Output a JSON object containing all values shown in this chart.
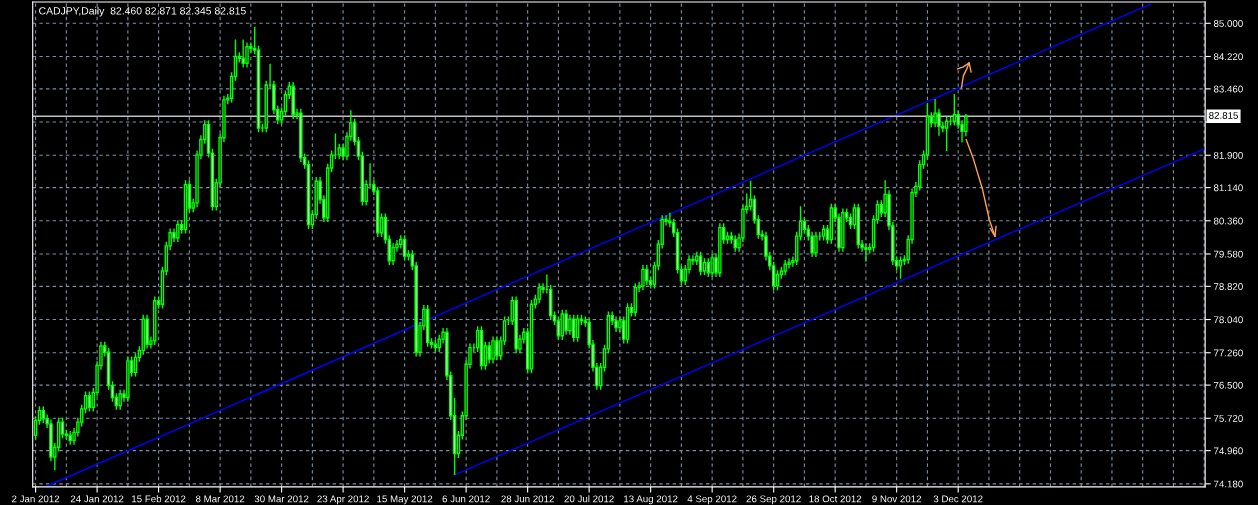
{
  "chart_data": {
    "type": "candlestick",
    "title": "CADJPY,Daily  82.460 82.871 82.345 82.815",
    "color": "#00ff00",
    "categories": [
      "2 Jan 2012",
      null,
      null,
      null,
      null,
      null,
      null,
      null,
      null,
      null,
      null,
      null,
      null,
      null,
      null,
      null,
      "24 Jan 2012",
      null,
      null,
      null,
      null,
      null,
      null,
      null,
      null,
      null,
      null,
      null,
      null,
      null,
      null,
      null,
      "15 Feb 2012",
      null,
      null,
      null,
      null,
      null,
      null,
      null,
      null,
      null,
      null,
      null,
      null,
      null,
      null,
      null,
      "8 Mar 2012",
      null,
      null,
      null,
      null,
      null,
      null,
      null,
      null,
      null,
      null,
      null,
      null,
      null,
      null,
      null,
      "30 Mar 2012",
      null,
      null,
      null,
      null,
      null,
      null,
      null,
      null,
      null,
      null,
      null,
      null,
      null,
      null,
      null,
      "23 Apr 2012",
      null,
      null,
      null,
      null,
      null,
      null,
      null,
      null,
      null,
      null,
      null,
      null,
      null,
      null,
      null,
      "15 May 2012",
      null,
      null,
      null,
      null,
      null,
      null,
      null,
      null,
      null,
      null,
      null,
      null,
      null,
      null,
      null,
      "6 Jun 2012",
      null,
      null,
      null,
      null,
      null,
      null,
      null,
      null,
      null,
      null,
      null,
      null,
      null,
      null,
      null,
      "28 Jun 2012",
      null,
      null,
      null,
      null,
      null,
      null,
      null,
      null,
      null,
      null,
      null,
      null,
      null,
      null,
      null,
      "20 Jul 2012",
      null,
      null,
      null,
      null,
      null,
      null,
      null,
      null,
      null,
      null,
      null,
      null,
      null,
      null,
      null,
      "13 Aug 2012",
      null,
      null,
      null,
      null,
      null,
      null,
      null,
      null,
      null,
      null,
      null,
      null,
      null,
      null,
      null,
      "4 Sep 2012",
      null,
      null,
      null,
      null,
      null,
      null,
      null,
      null,
      null,
      null,
      null,
      null,
      null,
      null,
      null,
      "26 Sep 2012",
      null,
      null,
      null,
      null,
      null,
      null,
      null,
      null,
      null,
      null,
      null,
      null,
      null,
      null,
      null,
      "18 Oct 2012",
      null,
      null,
      null,
      null,
      null,
      null,
      null,
      null,
      null,
      null,
      null,
      null,
      null,
      null,
      null,
      "9 Nov 2012",
      null,
      null,
      null,
      null,
      null,
      null,
      null,
      null,
      null,
      null,
      null,
      null,
      null,
      null,
      null,
      "3 Dec 2012",
      null,
      null,
      null,
      null,
      null,
      null,
      null,
      null,
      null,
      null,
      null,
      null,
      null,
      null,
      null,
      null,
      null,
      null,
      null,
      null,
      null,
      null,
      null,
      null,
      null,
      null,
      null,
      null,
      null,
      null,
      null,
      null,
      null,
      null,
      null,
      null,
      null,
      null,
      null,
      null,
      null,
      null,
      null,
      null,
      null,
      null,
      null,
      null,
      null,
      null,
      null,
      null,
      null,
      null,
      null,
      null,
      null,
      null,
      null,
      null,
      null,
      null,
      null,
      null
    ],
    "ohlc": [
      [
        75.32,
        75.77,
        75.22,
        75.67
      ],
      [
        75.67,
        76.0,
        75.57,
        75.9
      ],
      [
        75.9,
        76.0,
        75.61,
        75.71
      ],
      [
        75.71,
        75.81,
        75.49,
        75.59
      ],
      [
        75.59,
        75.69,
        74.71,
        74.81
      ],
      [
        74.81,
        75.14,
        74.5,
        75.04
      ],
      [
        75.04,
        75.73,
        74.94,
        75.63
      ],
      [
        75.63,
        75.73,
        75.25,
        75.35
      ],
      [
        75.35,
        75.45,
        75.22,
        75.32
      ],
      [
        75.32,
        75.42,
        75.1,
        75.2
      ],
      [
        75.2,
        75.49,
        75.1,
        75.39
      ],
      [
        75.39,
        75.73,
        75.29,
        75.63
      ],
      [
        75.63,
        76.04,
        75.53,
        75.94
      ],
      [
        75.94,
        76.35,
        75.84,
        76.25
      ],
      [
        76.25,
        76.35,
        75.88,
        75.98
      ],
      [
        75.98,
        76.43,
        75.88,
        76.33
      ],
      [
        76.33,
        77.06,
        76.23,
        76.96
      ],
      [
        76.96,
        77.52,
        76.86,
        77.42
      ],
      [
        77.42,
        77.52,
        77.17,
        77.27
      ],
      [
        77.27,
        77.37,
        76.39,
        76.49
      ],
      [
        76.49,
        76.59,
        76.11,
        76.21
      ],
      [
        76.21,
        76.31,
        75.92,
        76.02
      ],
      [
        76.02,
        76.39,
        75.92,
        76.29
      ],
      [
        76.29,
        76.39,
        76.11,
        76.21
      ],
      [
        76.21,
        77.17,
        76.11,
        77.07
      ],
      [
        77.07,
        77.17,
        76.7,
        76.8
      ],
      [
        76.8,
        77.25,
        76.7,
        77.15
      ],
      [
        77.15,
        77.41,
        77.05,
        77.31
      ],
      [
        77.31,
        78.15,
        77.21,
        78.05
      ],
      [
        78.05,
        78.15,
        77.36,
        77.46
      ],
      [
        77.46,
        77.64,
        77.36,
        77.54
      ],
      [
        77.54,
        78.58,
        77.44,
        78.48
      ],
      [
        78.48,
        78.58,
        78.3,
        78.4
      ],
      [
        78.4,
        79.28,
        78.3,
        79.18
      ],
      [
        79.18,
        79.87,
        79.08,
        79.77
      ],
      [
        79.77,
        80.18,
        79.67,
        80.08
      ],
      [
        80.08,
        80.18,
        79.86,
        79.96
      ],
      [
        79.96,
        80.37,
        79.86,
        80.27
      ],
      [
        80.27,
        80.37,
        80.06,
        80.16
      ],
      [
        80.16,
        81.31,
        80.06,
        81.21
      ],
      [
        81.21,
        81.31,
        80.56,
        80.66
      ],
      [
        80.66,
        80.88,
        80.56,
        80.78
      ],
      [
        80.78,
        82.01,
        80.68,
        81.91
      ],
      [
        81.91,
        82.37,
        81.81,
        82.27
      ],
      [
        82.27,
        82.72,
        82.17,
        82.62
      ],
      [
        82.62,
        82.72,
        81.85,
        81.95
      ],
      [
        81.95,
        82.05,
        80.6,
        80.7
      ],
      [
        80.7,
        81.35,
        80.6,
        81.25
      ],
      [
        81.25,
        82.41,
        81.15,
        82.31
      ],
      [
        82.31,
        83.3,
        82.21,
        83.2
      ],
      [
        83.2,
        83.34,
        83.1,
        83.24
      ],
      [
        83.24,
        83.85,
        83.14,
        83.75
      ],
      [
        83.75,
        84.62,
        83.65,
        84.22
      ],
      [
        84.22,
        84.32,
        84.08,
        84.18
      ],
      [
        84.18,
        84.62,
        83.96,
        84.06
      ],
      [
        84.06,
        84.55,
        83.96,
        84.45
      ],
      [
        84.45,
        84.55,
        84.31,
        84.41
      ],
      [
        84.41,
        84.92,
        84.27,
        84.37
      ],
      [
        84.37,
        84.47,
        82.44,
        82.54
      ],
      [
        82.54,
        82.64,
        82.44,
        82.54
      ],
      [
        82.54,
        83.65,
        82.44,
        83.55
      ],
      [
        83.55,
        84.05,
        83.45,
        83.55
      ],
      [
        83.55,
        83.65,
        82.87,
        82.97
      ],
      [
        82.97,
        83.07,
        82.63,
        82.73
      ],
      [
        82.73,
        83.03,
        82.63,
        82.93
      ],
      [
        82.93,
        83.42,
        82.83,
        83.32
      ],
      [
        83.32,
        83.62,
        83.22,
        83.52
      ],
      [
        83.52,
        83.62,
        82.75,
        82.85
      ],
      [
        82.85,
        82.99,
        82.75,
        82.89
      ],
      [
        82.89,
        82.99,
        81.74,
        81.84
      ],
      [
        81.84,
        81.94,
        81.58,
        81.68
      ],
      [
        81.68,
        81.78,
        80.17,
        80.27
      ],
      [
        80.27,
        80.61,
        80.17,
        80.51
      ],
      [
        80.51,
        81.39,
        80.41,
        81.29
      ],
      [
        81.29,
        81.39,
        80.76,
        80.86
      ],
      [
        80.86,
        80.96,
        80.33,
        80.43
      ],
      [
        80.43,
        81.7,
        80.33,
        81.6
      ],
      [
        81.6,
        82.01,
        81.5,
        81.91
      ],
      [
        81.91,
        82.41,
        81.81,
        81.91
      ],
      [
        81.91,
        82.17,
        81.81,
        82.07
      ],
      [
        82.07,
        82.17,
        81.78,
        81.88
      ],
      [
        81.88,
        82.44,
        81.78,
        82.34
      ],
      [
        82.34,
        82.96,
        82.24,
        82.66
      ],
      [
        82.66,
        82.76,
        82.13,
        82.23
      ],
      [
        82.23,
        82.33,
        81.78,
        81.88
      ],
      [
        81.88,
        81.98,
        80.72,
        80.82
      ],
      [
        80.82,
        81.31,
        80.72,
        81.21
      ],
      [
        81.21,
        81.71,
        81.11,
        81.21
      ],
      [
        81.21,
        81.31,
        80.96,
        81.06
      ],
      [
        81.06,
        81.16,
        79.98,
        80.08
      ],
      [
        80.08,
        80.53,
        79.98,
        80.43
      ],
      [
        80.43,
        80.53,
        79.82,
        79.92
      ],
      [
        79.92,
        80.02,
        79.32,
        79.42
      ],
      [
        79.42,
        79.83,
        79.32,
        79.73
      ],
      [
        79.73,
        79.91,
        79.63,
        79.81
      ],
      [
        79.81,
        80.02,
        79.71,
        79.92
      ],
      [
        79.92,
        80.02,
        79.43,
        79.53
      ],
      [
        79.53,
        79.67,
        79.43,
        79.57
      ],
      [
        79.57,
        79.67,
        79.2,
        79.3
      ],
      [
        79.3,
        79.4,
        77.17,
        77.27
      ],
      [
        77.27,
        77.99,
        77.17,
        77.89
      ],
      [
        77.89,
        78.38,
        77.79,
        78.28
      ],
      [
        78.28,
        78.38,
        77.4,
        77.5
      ],
      [
        77.5,
        77.6,
        77.36,
        77.46
      ],
      [
        77.46,
        77.56,
        77.28,
        77.38
      ],
      [
        77.38,
        77.68,
        77.28,
        77.58
      ],
      [
        77.58,
        77.84,
        77.48,
        77.74
      ],
      [
        77.74,
        77.84,
        76.62,
        76.72
      ],
      [
        76.72,
        76.82,
        75.68,
        75.78
      ],
      [
        75.78,
        76.2,
        74.39,
        74.89
      ],
      [
        74.89,
        75.42,
        74.79,
        75.32
      ],
      [
        75.32,
        75.88,
        75.22,
        75.78
      ],
      [
        75.78,
        77.09,
        75.68,
        76.99
      ],
      [
        76.99,
        77.48,
        76.89,
        77.38
      ],
      [
        77.38,
        77.48,
        77.28,
        77.38
      ],
      [
        77.38,
        77.88,
        77.28,
        77.78
      ],
      [
        77.78,
        77.88,
        76.86,
        76.96
      ],
      [
        76.96,
        77.52,
        76.86,
        77.42
      ],
      [
        77.42,
        77.52,
        77.01,
        77.11
      ],
      [
        77.11,
        77.64,
        77.01,
        77.54
      ],
      [
        77.54,
        77.64,
        77.09,
        77.19
      ],
      [
        77.19,
        77.64,
        77.09,
        77.54
      ],
      [
        77.54,
        78.11,
        77.44,
        78.01
      ],
      [
        78.01,
        78.11,
        77.91,
        78.01
      ],
      [
        78.01,
        78.58,
        77.91,
        78.48
      ],
      [
        78.48,
        78.58,
        77.25,
        77.35
      ],
      [
        77.35,
        77.68,
        77.25,
        77.58
      ],
      [
        77.58,
        77.84,
        77.48,
        77.74
      ],
      [
        77.74,
        77.84,
        76.78,
        76.88
      ],
      [
        76.88,
        78.5,
        76.78,
        78.4
      ],
      [
        78.4,
        78.62,
        78.3,
        78.52
      ],
      [
        78.52,
        78.89,
        78.42,
        78.79
      ],
      [
        78.79,
        78.89,
        78.65,
        78.75
      ],
      [
        78.75,
        79.1,
        78.65,
        78.75
      ],
      [
        78.75,
        78.85,
        78.03,
        78.13
      ],
      [
        78.13,
        78.23,
        77.91,
        78.01
      ],
      [
        78.01,
        78.11,
        77.56,
        77.66
      ],
      [
        77.66,
        78.27,
        77.56,
        78.17
      ],
      [
        78.17,
        78.27,
        77.68,
        77.78
      ],
      [
        77.78,
        78.15,
        77.68,
        78.05
      ],
      [
        78.05,
        78.15,
        77.52,
        77.62
      ],
      [
        77.62,
        78.15,
        77.52,
        78.05
      ],
      [
        78.05,
        78.15,
        77.91,
        78.01
      ],
      [
        78.01,
        78.11,
        77.87,
        77.97
      ],
      [
        77.97,
        78.07,
        77.36,
        77.46
      ],
      [
        77.46,
        77.56,
        76.82,
        76.92
      ],
      [
        76.92,
        77.02,
        76.39,
        76.49
      ],
      [
        76.49,
        77.02,
        76.39,
        76.92
      ],
      [
        76.92,
        77.45,
        76.82,
        77.35
      ],
      [
        77.35,
        78.23,
        77.25,
        78.13
      ],
      [
        78.13,
        78.23,
        77.91,
        78.01
      ],
      [
        78.01,
        78.11,
        77.75,
        77.85
      ],
      [
        77.85,
        78.11,
        77.75,
        78.01
      ],
      [
        78.01,
        78.11,
        77.48,
        77.58
      ],
      [
        77.58,
        78.42,
        77.48,
        78.32
      ],
      [
        78.32,
        78.42,
        78.11,
        78.21
      ],
      [
        78.21,
        78.89,
        78.11,
        78.79
      ],
      [
        78.79,
        78.93,
        78.69,
        78.83
      ],
      [
        78.83,
        79.32,
        78.73,
        79.22
      ],
      [
        79.22,
        79.32,
        78.85,
        78.95
      ],
      [
        78.95,
        79.05,
        78.77,
        78.87
      ],
      [
        78.87,
        79.4,
        78.77,
        79.3
      ],
      [
        79.3,
        79.91,
        79.2,
        79.81
      ],
      [
        79.81,
        80.49,
        79.71,
        80.39
      ],
      [
        80.39,
        80.49,
        80.25,
        80.35
      ],
      [
        80.35,
        80.55,
        80.21,
        80.31
      ],
      [
        80.31,
        80.41,
        79.98,
        80.08
      ],
      [
        80.08,
        80.18,
        79.12,
        79.22
      ],
      [
        79.22,
        79.32,
        78.85,
        78.95
      ],
      [
        78.95,
        79.32,
        78.85,
        79.22
      ],
      [
        79.22,
        79.55,
        79.12,
        79.45
      ],
      [
        79.45,
        79.55,
        79.32,
        79.42
      ],
      [
        79.42,
        79.63,
        79.32,
        79.53
      ],
      [
        79.53,
        79.63,
        79.08,
        79.18
      ],
      [
        79.18,
        79.48,
        79.08,
        79.38
      ],
      [
        79.38,
        79.48,
        79.04,
        79.14
      ],
      [
        79.14,
        79.59,
        79.04,
        79.49
      ],
      [
        79.49,
        79.59,
        79.04,
        79.14
      ],
      [
        79.14,
        80.3,
        79.04,
        80.2
      ],
      [
        80.2,
        80.3,
        79.82,
        79.92
      ],
      [
        79.92,
        80.1,
        79.82,
        80.0
      ],
      [
        80.0,
        80.1,
        79.82,
        79.92
      ],
      [
        79.92,
        80.02,
        79.63,
        79.73
      ],
      [
        79.73,
        80.06,
        79.63,
        79.96
      ],
      [
        79.96,
        80.73,
        79.86,
        80.63
      ],
      [
        80.63,
        81.0,
        80.53,
        80.7
      ],
      [
        80.7,
        81.3,
        80.6,
        80.86
      ],
      [
        80.86,
        80.96,
        80.29,
        80.39
      ],
      [
        80.39,
        80.49,
        79.94,
        80.04
      ],
      [
        80.04,
        80.14,
        79.9,
        80.0
      ],
      [
        80.0,
        80.1,
        79.43,
        79.53
      ],
      [
        79.53,
        79.63,
        79.2,
        79.3
      ],
      [
        79.3,
        79.4,
        78.73,
        78.83
      ],
      [
        78.83,
        79.2,
        78.73,
        79.1
      ],
      [
        79.1,
        79.28,
        79.0,
        79.18
      ],
      [
        79.18,
        79.44,
        79.08,
        79.34
      ],
      [
        79.34,
        79.48,
        79.24,
        79.38
      ],
      [
        79.38,
        79.52,
        79.28,
        79.42
      ],
      [
        79.42,
        80.1,
        79.32,
        80.0
      ],
      [
        80.0,
        80.7,
        79.9,
        80.35
      ],
      [
        80.35,
        80.45,
        80.06,
        80.16
      ],
      [
        80.16,
        80.26,
        79.9,
        80.0
      ],
      [
        80.0,
        80.1,
        79.51,
        79.61
      ],
      [
        79.61,
        80.1,
        79.51,
        80.0
      ],
      [
        80.0,
        80.1,
        79.9,
        80.0
      ],
      [
        80.0,
        80.26,
        79.9,
        80.16
      ],
      [
        80.16,
        80.26,
        79.82,
        79.92
      ],
      [
        79.92,
        80.76,
        79.82,
        80.66
      ],
      [
        80.66,
        80.76,
        80.33,
        80.43
      ],
      [
        80.43,
        80.53,
        79.63,
        79.73
      ],
      [
        79.73,
        80.65,
        79.63,
        80.55
      ],
      [
        80.55,
        80.65,
        80.33,
        80.43
      ],
      [
        80.43,
        80.53,
        80.17,
        80.27
      ],
      [
        80.27,
        80.76,
        80.17,
        80.66
      ],
      [
        80.66,
        80.76,
        79.71,
        79.81
      ],
      [
        79.81,
        79.91,
        79.63,
        79.73
      ],
      [
        79.73,
        79.83,
        79.4,
        79.69
      ],
      [
        79.69,
        79.83,
        79.59,
        79.73
      ],
      [
        79.73,
        80.49,
        79.63,
        80.39
      ],
      [
        80.39,
        80.84,
        80.29,
        80.74
      ],
      [
        80.74,
        80.84,
        80.45,
        80.55
      ],
      [
        80.55,
        81.31,
        80.45,
        80.98
      ],
      [
        80.98,
        81.08,
        80.14,
        80.24
      ],
      [
        80.24,
        80.34,
        79.32,
        79.42
      ],
      [
        79.42,
        79.52,
        79.2,
        79.3
      ],
      [
        79.3,
        79.52,
        79.0,
        79.42
      ],
      [
        79.42,
        79.55,
        79.32,
        79.45
      ],
      [
        79.45,
        80.02,
        79.35,
        79.92
      ],
      [
        79.92,
        81.12,
        79.82,
        81.02
      ],
      [
        81.02,
        81.27,
        80.92,
        81.17
      ],
      [
        81.17,
        81.78,
        81.07,
        81.68
      ],
      [
        81.68,
        82.01,
        81.58,
        81.91
      ],
      [
        81.91,
        83.12,
        81.81,
        82.81
      ],
      [
        82.81,
        82.91,
        82.56,
        82.66
      ],
      [
        82.66,
        83.22,
        82.56,
        82.89
      ],
      [
        82.89,
        82.99,
        82.36,
        82.58
      ],
      [
        82.58,
        82.68,
        82.44,
        82.54
      ],
      [
        82.54,
        82.8,
        82.0,
        82.7
      ],
      [
        82.7,
        82.8,
        82.6,
        82.7
      ],
      [
        82.7,
        83.34,
        82.6,
        82.85
      ],
      [
        82.85,
        82.95,
        82.52,
        82.62
      ],
      [
        82.62,
        82.72,
        82.2,
        82.46
      ],
      [
        82.46,
        82.871,
        82.345,
        82.815
      ],
      null,
      null,
      null,
      null,
      null,
      null,
      null,
      null,
      null,
      null,
      null,
      null,
      null,
      null,
      null,
      null,
      null,
      null,
      null,
      null,
      null,
      null,
      null,
      null,
      null,
      null,
      null,
      null,
      null,
      null,
      null,
      null,
      null,
      null,
      null,
      null,
      null,
      null,
      null,
      null,
      null,
      null,
      null,
      null,
      null,
      null,
      null,
      null,
      null,
      null,
      null,
      null,
      null,
      null,
      null,
      null,
      null,
      null,
      null,
      null,
      null,
      null
    ],
    "series": [
      {
        "type": "line",
        "color": "#0000ff",
        "values": [
          null,
          null,
          null,
          74.13,
          null,
          null,
          null,
          null,
          null,
          null,
          null,
          null,
          null,
          null,
          null,
          null,
          null,
          null,
          null,
          null,
          null,
          null,
          null,
          null,
          null,
          null,
          null,
          null,
          null,
          null,
          null,
          null,
          null,
          null,
          null,
          null,
          null,
          null,
          null,
          null,
          null,
          null,
          null,
          null,
          null,
          null,
          null,
          null,
          null,
          null,
          null,
          null,
          null,
          null,
          null,
          null,
          null,
          null,
          null,
          null,
          null,
          null,
          null,
          null,
          null,
          null,
          null,
          null,
          null,
          null,
          null,
          null,
          null,
          null,
          null,
          null,
          null,
          null,
          null,
          null,
          null,
          null,
          null,
          null,
          null,
          null,
          null,
          null,
          null,
          null,
          null,
          null,
          null,
          null,
          null,
          null,
          null,
          null,
          null,
          null,
          null,
          null,
          null,
          null,
          null,
          null,
          null,
          null,
          null,
          null,
          null,
          null,
          null,
          null,
          null,
          null,
          null,
          null,
          null,
          null,
          null,
          null,
          null,
          null,
          null,
          null,
          null,
          null,
          null,
          null,
          null,
          null,
          null,
          null,
          null,
          null,
          null,
          null,
          null,
          null,
          null,
          null,
          null,
          null,
          null,
          null,
          null,
          null,
          null,
          null,
          null,
          null,
          null,
          null,
          null,
          null,
          null,
          null,
          null,
          null,
          null,
          null,
          null,
          null,
          null,
          null,
          null,
          null,
          null,
          null,
          null,
          null,
          null,
          null,
          null,
          null,
          null,
          null,
          null,
          null,
          null,
          null,
          null,
          null,
          null,
          null,
          null,
          null,
          null,
          null,
          null,
          null,
          null,
          null,
          null,
          null,
          null,
          null,
          null,
          null,
          null,
          null,
          null,
          null,
          null,
          null,
          null,
          null,
          null,
          null,
          null,
          null,
          null,
          null,
          null,
          null,
          null,
          null,
          null,
          null,
          null,
          null,
          null,
          null,
          null,
          null,
          null,
          null,
          null,
          null,
          null,
          null,
          null,
          null,
          null,
          null,
          null,
          null,
          null,
          null,
          null,
          null,
          null,
          null,
          null,
          null,
          null,
          null,
          null,
          null,
          null,
          null,
          null,
          null,
          null,
          null,
          null,
          null,
          null,
          null,
          null,
          null,
          null,
          null,
          null,
          null,
          null,
          null,
          null,
          null,
          null,
          null,
          null,
          null,
          null,
          null,
          null,
          null,
          null,
          null,
          null,
          null,
          null,
          null,
          null,
          null,
          null,
          null,
          null,
          null,
          85.45,
          null,
          null,
          null,
          null,
          null,
          null,
          null,
          null,
          null,
          null,
          null,
          null,
          null,
          null
        ]
      },
      {
        "type": "line",
        "color": "#0000ff",
        "values": [
          null,
          null,
          null,
          null,
          null,
          null,
          null,
          null,
          null,
          null,
          null,
          null,
          null,
          null,
          null,
          null,
          null,
          null,
          null,
          null,
          null,
          null,
          null,
          null,
          null,
          null,
          null,
          null,
          null,
          null,
          null,
          null,
          null,
          null,
          null,
          null,
          null,
          null,
          null,
          null,
          null,
          null,
          null,
          null,
          null,
          null,
          null,
          null,
          null,
          null,
          null,
          null,
          null,
          null,
          null,
          null,
          null,
          null,
          null,
          null,
          null,
          null,
          null,
          null,
          null,
          null,
          null,
          null,
          null,
          null,
          null,
          null,
          null,
          null,
          null,
          null,
          null,
          null,
          null,
          null,
          null,
          null,
          null,
          null,
          null,
          null,
          null,
          null,
          null,
          null,
          null,
          null,
          null,
          null,
          null,
          null,
          null,
          null,
          null,
          null,
          null,
          null,
          null,
          null,
          null,
          null,
          null,
          null,
          null,
          74.39,
          null,
          null,
          null,
          null,
          null,
          null,
          null,
          null,
          null,
          null,
          null,
          null,
          null,
          null,
          null,
          null,
          null,
          null,
          null,
          null,
          null,
          null,
          null,
          null,
          null,
          null,
          null,
          null,
          null,
          null,
          null,
          null,
          null,
          null,
          null,
          null,
          null,
          null,
          null,
          null,
          null,
          null,
          null,
          null,
          null,
          null,
          null,
          null,
          null,
          null,
          null,
          null,
          null,
          null,
          null,
          null,
          null,
          null,
          null,
          null,
          null,
          null,
          null,
          null,
          null,
          null,
          null,
          null,
          null,
          null,
          null,
          null,
          null,
          null,
          null,
          null,
          null,
          null,
          null,
          null,
          null,
          null,
          null,
          null,
          null,
          null,
          null,
          null,
          null,
          null,
          null,
          null,
          null,
          null,
          null,
          null,
          null,
          null,
          null,
          null,
          null,
          null,
          null,
          null,
          null,
          null,
          null,
          null,
          null,
          null,
          null,
          null,
          null,
          null,
          null,
          null,
          null,
          null,
          null,
          null,
          null,
          null,
          null,
          null,
          null,
          null,
          null,
          null,
          null,
          null,
          null,
          null,
          null,
          null,
          null,
          null,
          null,
          null,
          null,
          null,
          null,
          null,
          null,
          null,
          null,
          null,
          null,
          null,
          null,
          null,
          null,
          null,
          null,
          null,
          null,
          null,
          null,
          null,
          null,
          null,
          null,
          null,
          null,
          null,
          null,
          null,
          null,
          null,
          null,
          null,
          null,
          null,
          null,
          null,
          null,
          null,
          null,
          null,
          null,
          null,
          null,
          null,
          null,
          null,
          null,
          null,
          null,
          null,
          null,
          null,
          null,
          null,
          null,
          null,
          82.05
        ]
      }
    ],
    "ylim": [
      74.11,
      85.5
    ],
    "yticks": [
      {
        "value": 74.18,
        "label": "74.180"
      },
      {
        "value": 74.96,
        "label": "74.960"
      },
      {
        "value": 75.72,
        "label": "75.720"
      },
      {
        "value": 76.5,
        "label": "76.500"
      },
      {
        "value": 77.26,
        "label": "77.260"
      },
      {
        "value": 78.04,
        "label": "78.040"
      },
      {
        "value": 78.82,
        "label": "78.820"
      },
      {
        "value": 79.58,
        "label": "79.580"
      },
      {
        "value": 80.36,
        "label": "80.360"
      },
      {
        "value": 81.14,
        "label": "81.140"
      },
      {
        "value": 81.9,
        "label": "81.900"
      },
      {
        "value": 82.68,
        "label": null
      },
      {
        "value": 83.46,
        "label": "83.460"
      },
      {
        "value": 84.22,
        "label": "84.220"
      },
      {
        "value": 85.0,
        "label": "85.000"
      }
    ],
    "grid": true,
    "ref_lines": [
      {
        "axis": "y",
        "value": 82.815,
        "label": "82.815",
        "color": "#c0c0c0"
      }
    ]
  }
}
